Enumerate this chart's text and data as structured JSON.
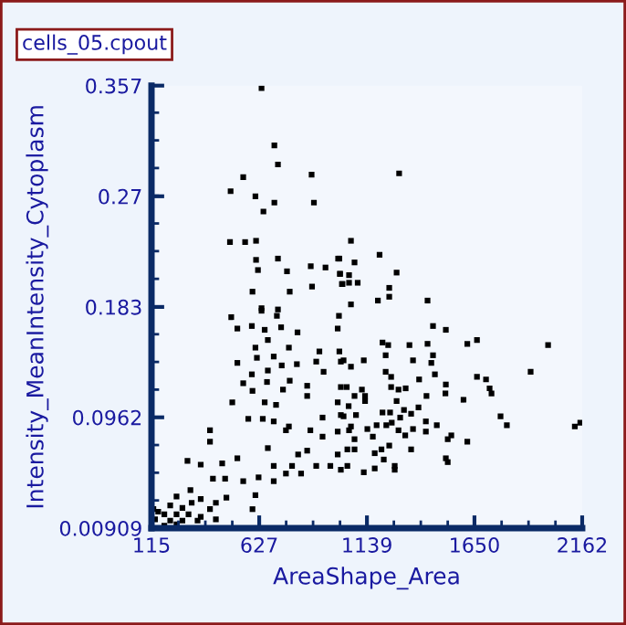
{
  "chart_data": {
    "type": "scatter",
    "title": "cells_05.cpout",
    "xlabel": "AreaShape_Area",
    "ylabel": "Intensity_MeanIntensity_Cytoplasm",
    "xlim": [
      115,
      2162
    ],
    "xticks": [
      115,
      627,
      1139,
      1650,
      2162
    ],
    "ylim": [
      0.00909,
      0.357
    ],
    "yticks": [
      0.00909,
      0.0962,
      0.183,
      0.27,
      0.357
    ],
    "grid": false,
    "legend": false,
    "marker": "square",
    "series": [
      {
        "color": "#000000",
        "x": [
          638,
          699,
          716,
          551,
          876,
          491,
          609,
          699,
          887,
          647,
          488,
          560,
          612,
          612,
          716,
          1002,
          621,
          759,
          872,
          942,
          1011,
          1020,
          878,
          595,
          772,
          638,
          716,
          1292,
          1063,
          1008,
          1080,
          1199,
          1280,
          1011,
          1054,
          1023,
          1054,
          1095,
          1245,
          1245,
          1191,
          1063,
          1427,
          494,
          638,
          711,
          523,
          592,
          653,
          731,
          809,
          1006,
          609,
          668,
          768,
          913,
          616,
          696,
          523,
          734,
          806,
          898,
          1015,
          592,
          668,
          772,
          933,
          551,
          664,
          595,
          740,
          855,
          1015,
          653,
          855,
          499,
          707,
          575,
          644,
          768,
          696,
          928,
          1015,
          393,
          754,
          870,
          928,
          393,
          668,
          812,
          855,
          1000,
          286,
          349,
          451,
          523,
          696,
          783,
          898,
          965,
          407,
          465,
          551,
          624,
          696,
          754,
          826,
          1015,
          300,
          234,
          471,
          609,
          349,
          421,
          204,
          262,
          306,
          393,
          595,
          147,
          176,
          234,
          291,
          349,
          132,
          204,
          262,
          334,
          421,
          176,
          234,
          124,
          1453,
          1514,
          1000,
          1213,
          1240,
          1341,
          1427,
          1616,
          1662,
          2000,
          1008,
          1228,
          1453,
          1028,
          1124,
          1358,
          1445,
          1063,
          1228,
          1254,
          1462,
          1387,
          1662,
          1705,
          1917,
          1514,
          1043,
          1254,
          1289,
          1323,
          1115,
          1722,
          1731,
          1512,
          1422,
          1598,
          1080,
          1130,
          1130,
          1280,
          1000,
          1052,
          1384,
          1213,
          1249,
          1315,
          1349,
          1028,
          1087,
          1297,
          1774,
          1419,
          1231,
          1257,
          1185,
          1471,
          1063,
          1054,
          1141,
          1358,
          1289,
          1804,
          2127,
          2153,
          1000,
          1419,
          1321,
          1167,
          1080,
          1540,
          1523,
          1616,
          1245,
          1208,
          1046,
          1080,
          1349,
          1176,
          1514,
          1523,
          1219,
          1046,
          1176,
          1271,
          1271,
          1124
        ],
        "values": [
          0.355,
          0.31,
          0.295,
          0.285,
          0.287,
          0.274,
          0.27,
          0.265,
          0.265,
          0.258,
          0.234,
          0.234,
          0.235,
          0.22,
          0.221,
          0.221,
          0.212,
          0.211,
          0.215,
          0.214,
          0.209,
          0.201,
          0.199,
          0.195,
          0.195,
          0.182,
          0.181,
          0.288,
          0.235,
          0.221,
          0.218,
          0.224,
          0.21,
          0.209,
          0.208,
          0.201,
          0.202,
          0.202,
          0.198,
          0.191,
          0.188,
          0.185,
          0.188,
          0.175,
          0.18,
          0.176,
          0.166,
          0.168,
          0.165,
          0.167,
          0.163,
          0.176,
          0.151,
          0.157,
          0.151,
          0.148,
          0.143,
          0.144,
          0.139,
          0.137,
          0.138,
          0.14,
          0.14,
          0.13,
          0.133,
          0.125,
          0.132,
          0.123,
          0.124,
          0.117,
          0.118,
          0.121,
          0.12,
          0.108,
          0.113,
          0.108,
          0.106,
          0.095,
          0.095,
          0.089,
          0.093,
          0.096,
          0.098,
          0.086,
          0.086,
          0.086,
          0.081,
          0.077,
          0.072,
          0.067,
          0.07,
          0.067,
          0.062,
          0.059,
          0.06,
          0.064,
          0.058,
          0.058,
          0.058,
          0.058,
          0.048,
          0.048,
          0.046,
          0.049,
          0.046,
          0.052,
          0.052,
          0.055,
          0.039,
          0.034,
          0.033,
          0.035,
          0.032,
          0.029,
          0.027,
          0.025,
          0.029,
          0.024,
          0.024,
          0.022,
          0.02,
          0.02,
          0.02,
          0.018,
          0.016,
          0.015,
          0.015,
          0.015,
          0.016,
          0.011,
          0.012,
          0.024,
          0.168,
          0.165,
          0.166,
          0.155,
          0.153,
          0.153,
          0.154,
          0.154,
          0.157,
          0.153,
          0.148,
          0.145,
          0.145,
          0.141,
          0.141,
          0.141,
          0.139,
          0.136,
          0.132,
          0.128,
          0.13,
          0.126,
          0.128,
          0.126,
          0.132,
          0.122,
          0.12,
          0.12,
          0.118,
          0.119,
          0.118,
          0.119,
          0.115,
          0.115,
          0.113,
          0.11,
          0.113,
          0.113,
          0.109,
          0.109,
          0.108,
          0.105,
          0.104,
          0.1,
          0.1,
          0.102,
          0.099,
          0.097,
          0.098,
          0.096,
          0.097,
          0.093,
          0.09,
          0.092,
          0.09,
          0.09,
          0.089,
          0.086,
          0.087,
          0.087,
          0.086,
          0.09,
          0.089,
          0.092,
          0.085,
          0.085,
          0.082,
          0.081,
          0.079,
          0.082,
          0.079,
          0.077,
          0.074,
          0.071,
          0.071,
          0.071,
          0.071,
          0.068,
          0.064,
          0.061,
          0.063,
          0.058,
          0.056,
          0.058,
          0.055,
          0.053
        ]
      }
    ]
  }
}
